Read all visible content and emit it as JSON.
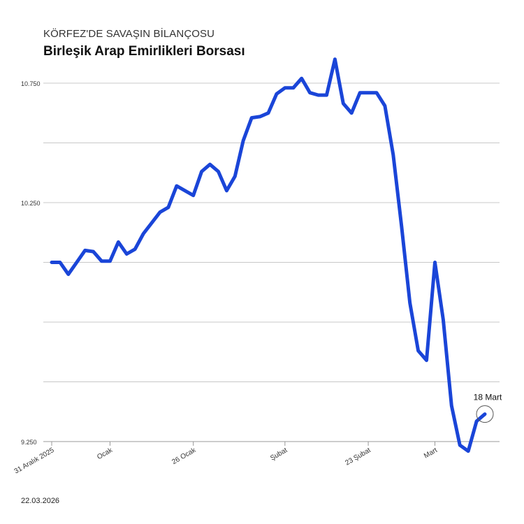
{
  "header": {
    "kicker": "KÖRFEZ'DE SAVAŞIN BİLANÇOSU",
    "title": "Birleşik Arap Emirlikleri Borsası"
  },
  "footer": {
    "date": "22.03.2026"
  },
  "colors": {
    "line": "#1a45d8",
    "grid": "#c8c8c8",
    "axis": "#999999",
    "text": "#333333"
  },
  "chart_data": {
    "type": "line",
    "title": "Birleşik Arap Emirlikleri Borsası",
    "xlabel": "",
    "ylabel": "",
    "ylim": [
      9250,
      10750
    ],
    "yticks": [
      {
        "value": 10750,
        "label": "10.750"
      },
      {
        "value": 10500,
        "label": ""
      },
      {
        "value": 10250,
        "label": "10.250"
      },
      {
        "value": 10000,
        "label": ""
      },
      {
        "value": 9750,
        "label": ""
      },
      {
        "value": 9500,
        "label": ""
      },
      {
        "value": 9250,
        "label": "9.250"
      }
    ],
    "xticks": [
      {
        "x": 0,
        "label": "31 Aralık 2025"
      },
      {
        "x": 7,
        "label": "Ocak"
      },
      {
        "x": 17,
        "label": "26 Ocak"
      },
      {
        "x": 28,
        "label": "Şubat"
      },
      {
        "x": 38,
        "label": "23 Şubat"
      },
      {
        "x": 46,
        "label": "Mart"
      }
    ],
    "grid": true,
    "annotation": {
      "label": "18 Mart"
    },
    "series": [
      {
        "values": [
          10000,
          10000,
          9950,
          10000,
          10050,
          10045,
          10005,
          10005,
          10085,
          10035,
          10055,
          10120,
          10165,
          10210,
          10230,
          10320,
          10300,
          10280,
          10380,
          10410,
          10380,
          10300,
          10360,
          10510,
          10605,
          10610,
          10625,
          10705,
          10730,
          10730,
          10770,
          10710,
          10700,
          10700,
          10850,
          10665,
          10625,
          10710,
          10710,
          10710,
          10655,
          10450,
          10150,
          9830,
          9630,
          9590,
          10000,
          9760,
          9400,
          9235,
          9210,
          9335,
          9365
        ]
      }
    ]
  }
}
